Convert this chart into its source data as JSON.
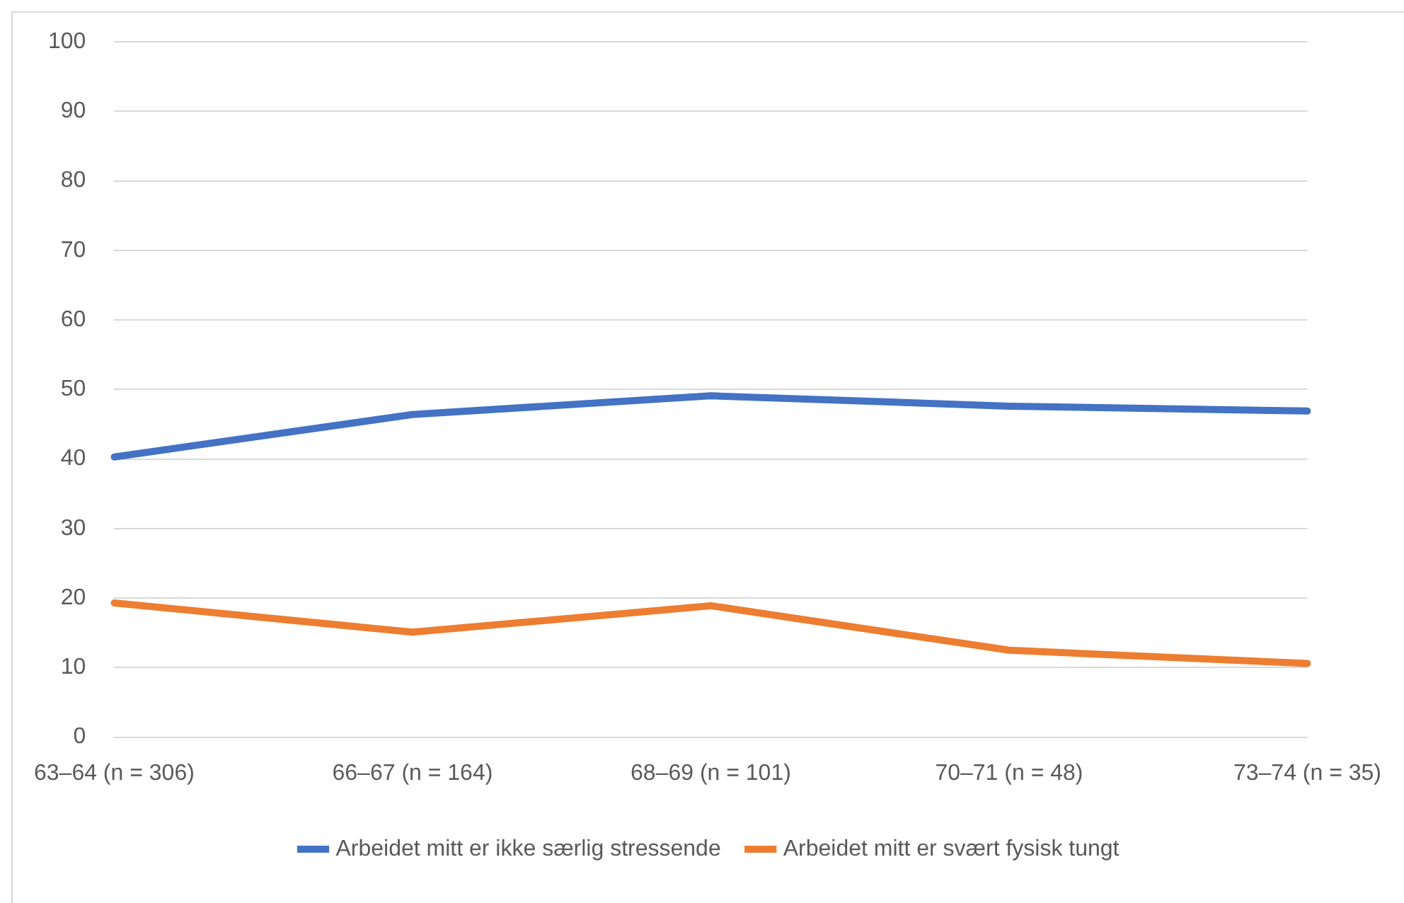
{
  "chart_data": {
    "type": "line",
    "categories": [
      "63–64 (n = 306)",
      "66–67 (n = 164)",
      "68–69 (n = 101)",
      "70–71 (n = 48)",
      "73–74 (n = 35)"
    ],
    "series": [
      {
        "name": "Arbeidet mitt er ikke særlig stressende",
        "color": "#4472c4",
        "values": [
          40.3,
          46.4,
          49.1,
          47.6,
          46.9
        ]
      },
      {
        "name": "Arbeidet mitt er svært fysisk tungt",
        "color": "#ed7d31",
        "values": [
          19.3,
          15.1,
          18.9,
          12.5,
          10.6
        ]
      }
    ],
    "ylim": [
      0,
      100
    ],
    "yticks": [
      0,
      10,
      20,
      30,
      40,
      50,
      60,
      70,
      80,
      90,
      100
    ],
    "grid": "y",
    "legend": "bottom",
    "marker": "none",
    "line_style": "solid"
  }
}
